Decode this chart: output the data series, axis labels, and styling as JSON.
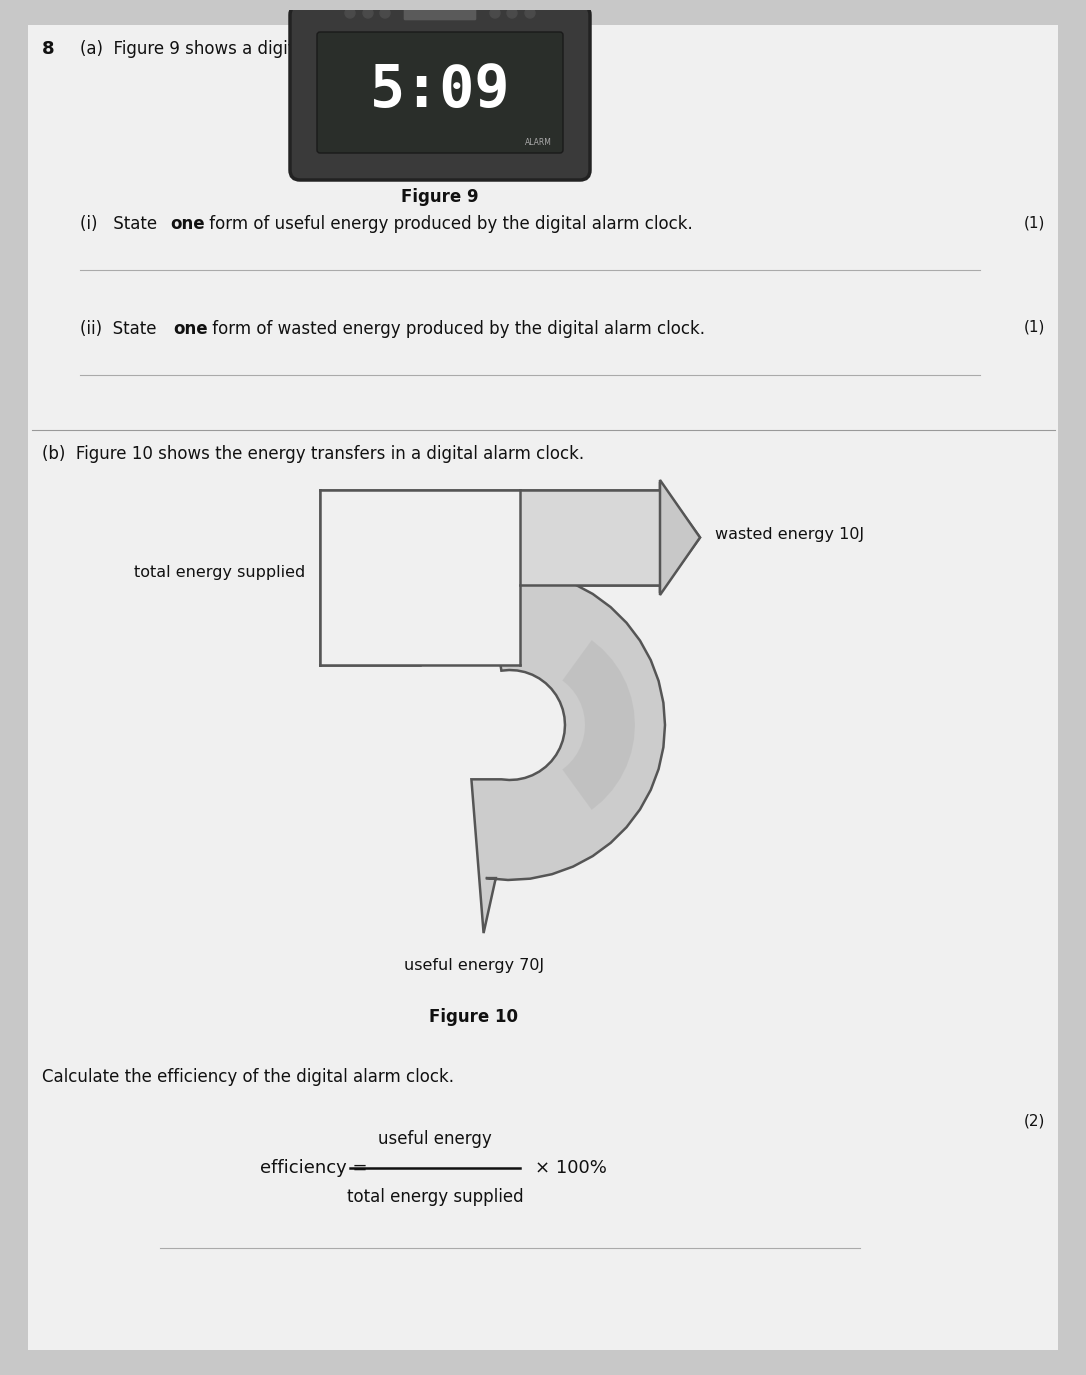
{
  "bg_color": "#c8c8c8",
  "paper_color": "#f0f0f0",
  "text_color": "#111111",
  "question_number": "8",
  "part_a_text": "(a)  Figure 9 shows a digital alarm clock.",
  "figure9_label": "Figure 9",
  "part_ai_marks": "(1)",
  "part_aii_marks": "(1)",
  "part_b_text": "(b)  Figure 10 shows the energy transfers in a digital alarm clock.",
  "wasted_energy_label": "wasted energy 10J",
  "total_energy_label": "total energy supplied",
  "useful_energy_label": "useful energy 70J",
  "figure10_label": "Figure 10",
  "calculate_text": "Calculate the efficiency of the digital alarm clock.",
  "marks_b": "(2)",
  "efficiency_label": "efficiency =",
  "numerator": "useful energy",
  "denominator": "total energy supplied",
  "multiply": "× 100%",
  "clock_display": "5:09",
  "alarm_text": "ALARM",
  "clock_body_color": "#3a3a3a",
  "clock_screen_color": "#2a2e2a",
  "arrow_fill_light": "#d8d8d8",
  "arrow_fill_dark": "#a0a0a0",
  "arrow_edge": "#555555"
}
